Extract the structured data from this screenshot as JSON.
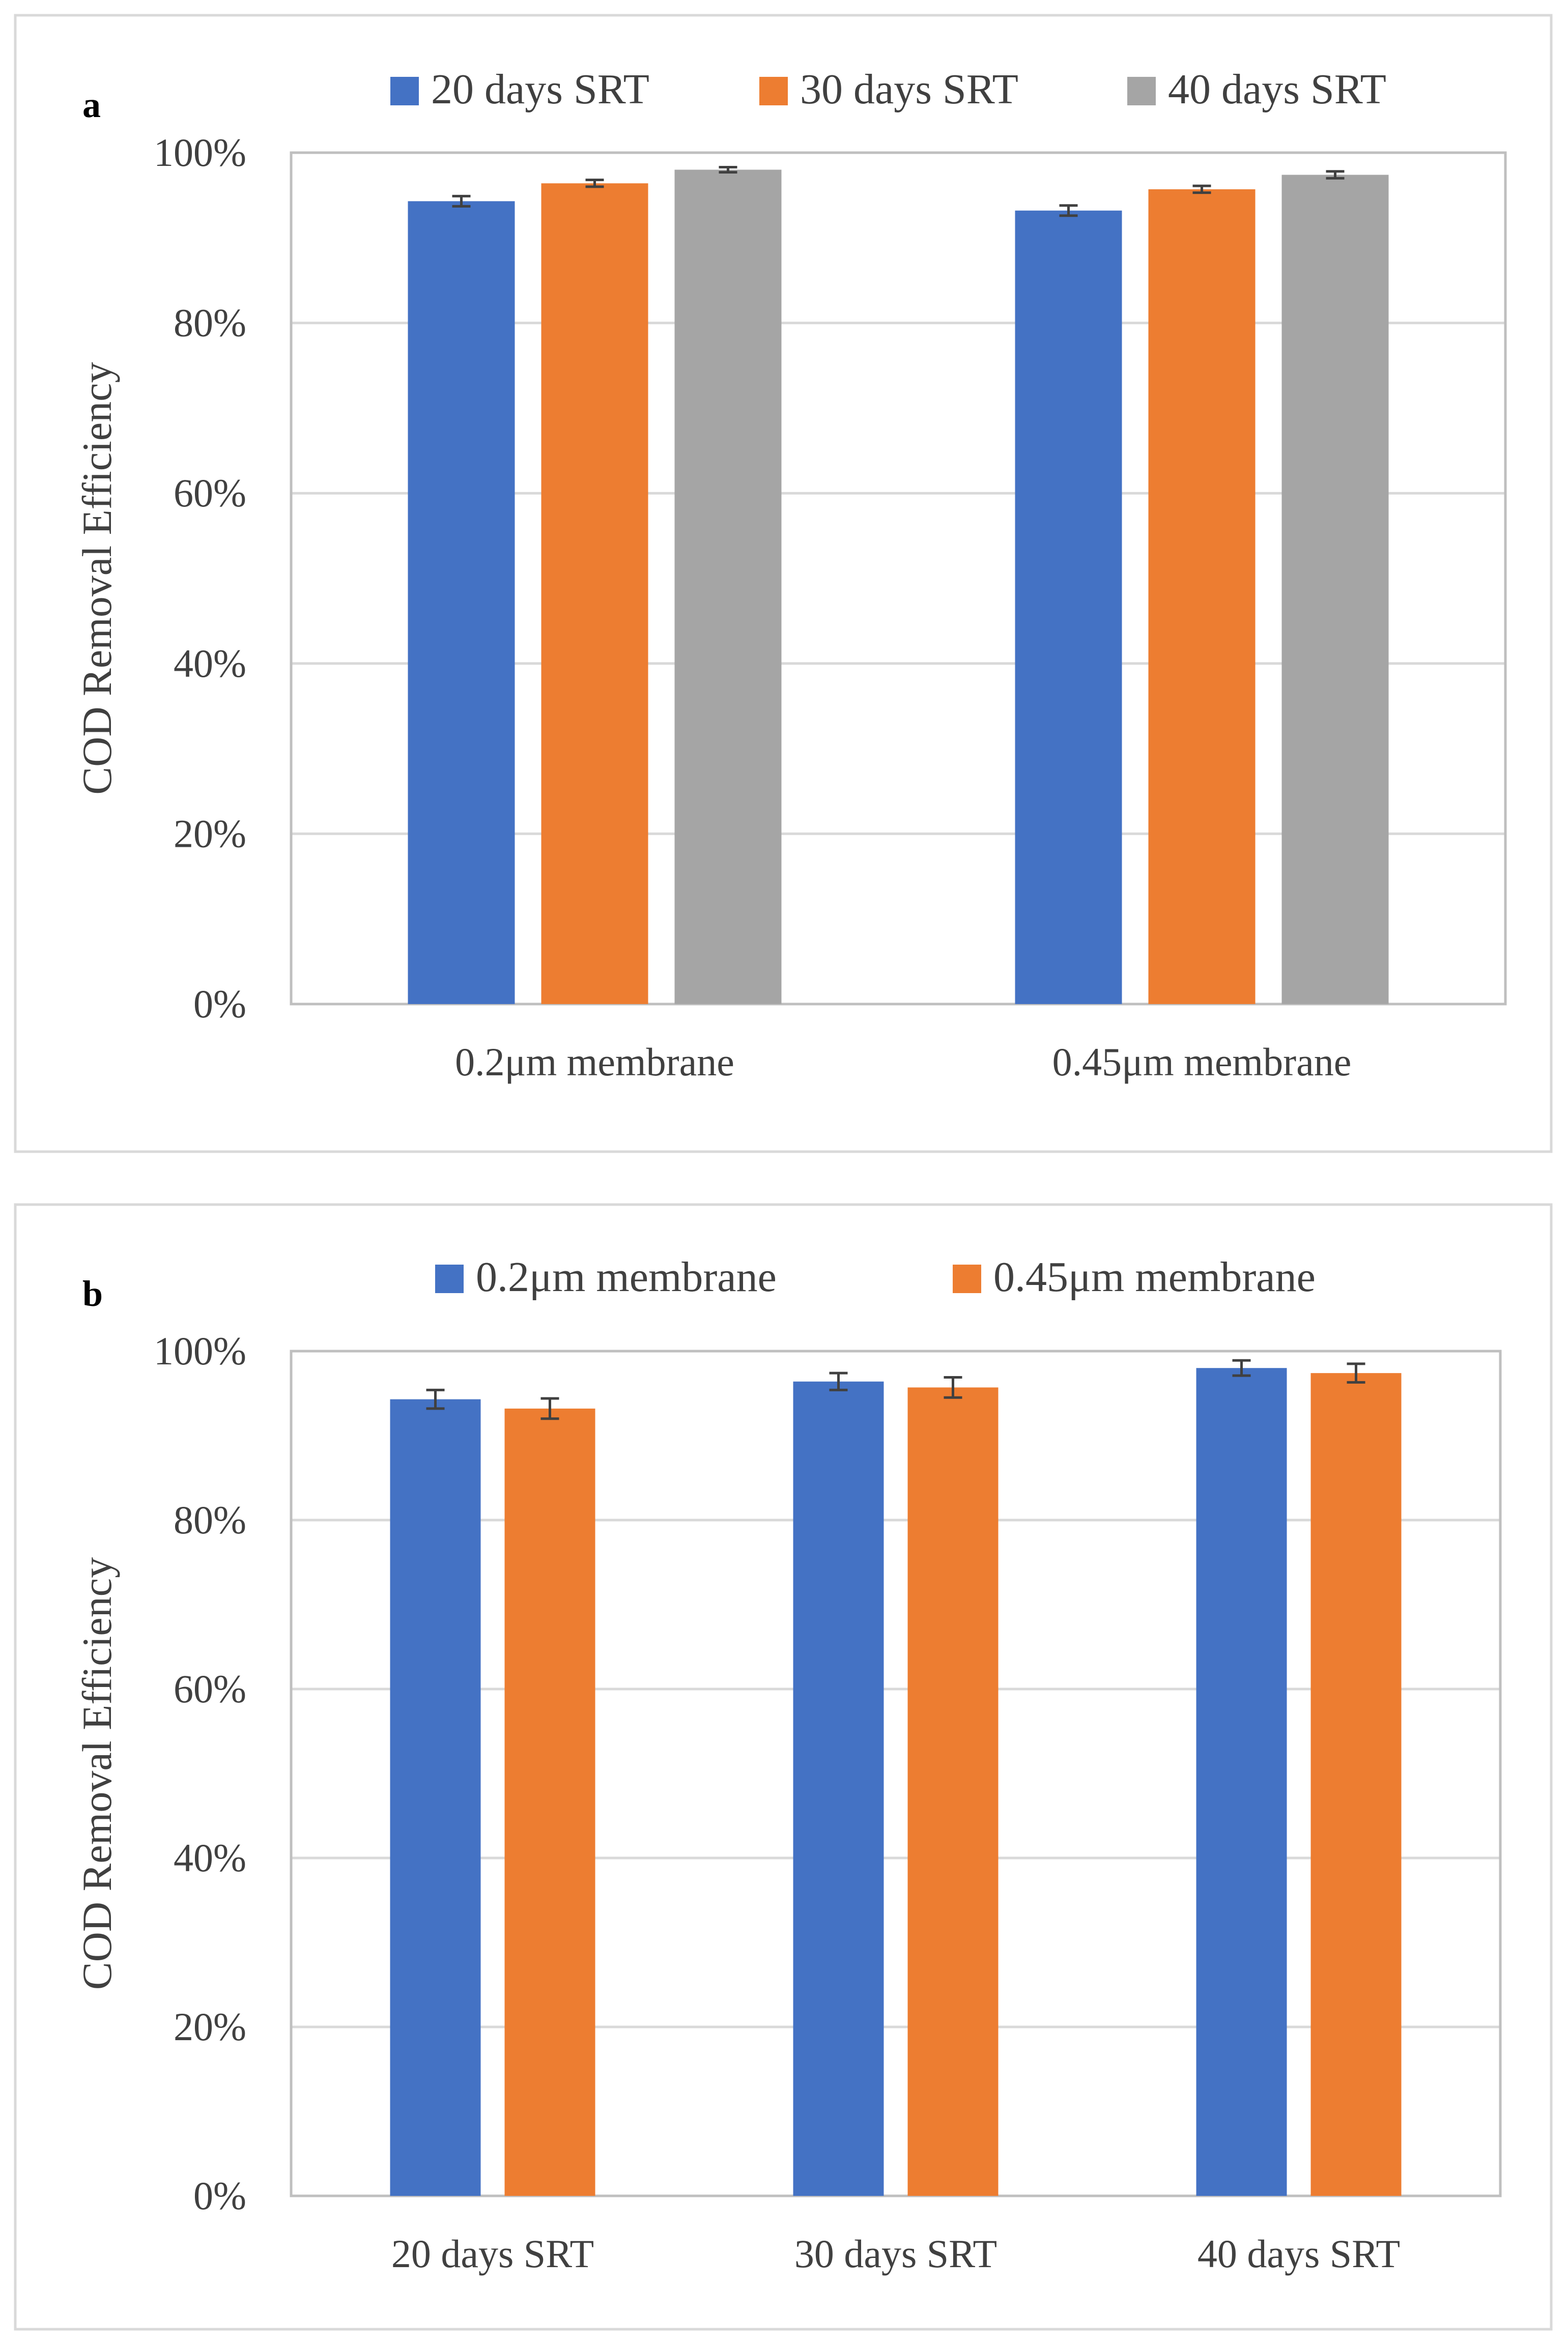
{
  "chart_data": [
    {
      "type": "bar",
      "panel_label": "a",
      "categories": [
        "0.2μm membrane",
        "0.45μm membrane"
      ],
      "series": [
        {
          "name": "20 days SRT",
          "color": "#4472C4",
          "values": [
            94.3,
            93.2
          ],
          "errors": [
            0.6,
            0.6
          ]
        },
        {
          "name": "30 days SRT",
          "color": "#ED7D31",
          "values": [
            96.4,
            95.7
          ],
          "errors": [
            0.4,
            0.4
          ]
        },
        {
          "name": "40 days SRT",
          "color": "#A5A5A5",
          "values": [
            98.0,
            97.4
          ],
          "errors": [
            0.3,
            0.4
          ]
        }
      ],
      "ylabel": "COD Removal Efficiency",
      "ylim": [
        0,
        100
      ],
      "yticks": [
        "0%",
        "20%",
        "40%",
        "60%",
        "80%",
        "100%"
      ],
      "grid": true,
      "legend": "top"
    },
    {
      "type": "bar",
      "panel_label": "b",
      "categories": [
        "20 days SRT",
        "30 days SRT",
        "40 days SRT"
      ],
      "series": [
        {
          "name": "0.2μm membrane",
          "color": "#4472C4",
          "values": [
            94.3,
            96.4,
            98.0
          ],
          "errors": [
            1.1,
            1.0,
            0.9
          ]
        },
        {
          "name": "0.45μm membrane",
          "color": "#ED7D31",
          "values": [
            93.2,
            95.7,
            97.4
          ],
          "errors": [
            1.2,
            1.2,
            1.1
          ]
        }
      ],
      "ylabel": "COD Removal Efficiency",
      "ylim": [
        0,
        100
      ],
      "yticks": [
        "0%",
        "20%",
        "40%",
        "60%",
        "80%",
        "100%"
      ],
      "grid": true,
      "legend": "top"
    }
  ]
}
